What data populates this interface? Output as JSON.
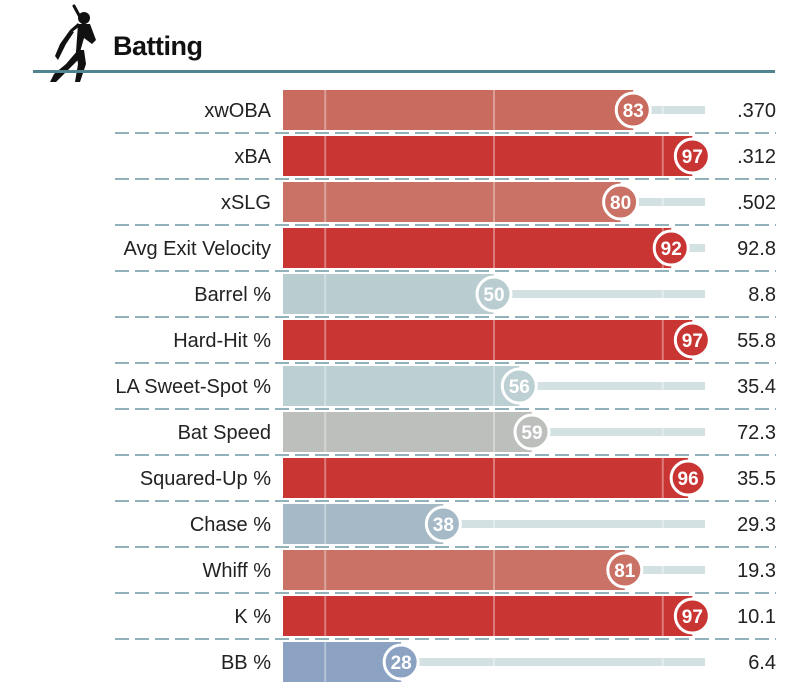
{
  "header": {
    "title": "Batting",
    "icon": "batter-silhouette-icon",
    "rule_color": "#4f8590"
  },
  "colors": {
    "track": "#d3e1e3",
    "divider": "#4f8590",
    "badge_border": "#ffffff"
  },
  "chart_data": {
    "type": "bar",
    "orientation": "horizontal",
    "title": "Batting",
    "xlim": [
      0,
      100
    ],
    "value_kind": "percentile",
    "categories": [
      "xwOBA",
      "xBA",
      "xSLG",
      "Avg Exit Velocity",
      "Barrel %",
      "Hard-Hit %",
      "LA Sweet-Spot %",
      "Bat Speed",
      "Squared-Up %",
      "Chase %",
      "Whiff %",
      "K %",
      "BB %"
    ],
    "percentiles": [
      83,
      97,
      80,
      92,
      50,
      97,
      56,
      59,
      96,
      38,
      81,
      97,
      28
    ],
    "stat_values": [
      ".370",
      ".312",
      ".502",
      "92.8",
      "8.8",
      "55.8",
      "35.4",
      "72.3",
      "35.5",
      "29.3",
      "19.3",
      "10.1",
      "6.4"
    ],
    "bar_colors": [
      "#c96b5e",
      "#c93533",
      "#c97265",
      "#c93533",
      "#b9cdd1",
      "#c93533",
      "#bccfd2",
      "#bdbfbd",
      "#c93533",
      "#a5bac6",
      "#c97265",
      "#c93533",
      "#8ba2c3"
    ],
    "grid": true,
    "grid_at": [
      10,
      50,
      90
    ]
  }
}
